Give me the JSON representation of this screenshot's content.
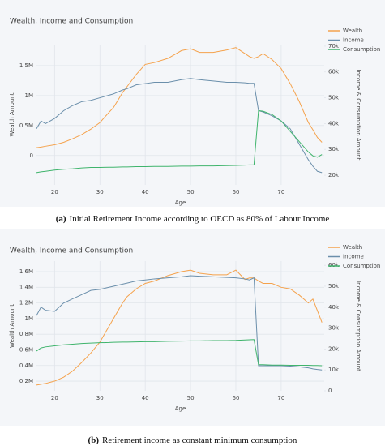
{
  "chart_data": [
    {
      "type": "line",
      "title": "Wealth, Income and Consumption",
      "caption_label": "(a)",
      "caption": "Initial Retirement Income according to OECD as 80% of Labour Income",
      "xlabel": "Age",
      "ylabel": "Wealth Amount",
      "y2label": "Income & Consumption Amount",
      "x": [
        16,
        17,
        18,
        20,
        22,
        24,
        26,
        28,
        30,
        32,
        33,
        35,
        36,
        38,
        40,
        42,
        45,
        48,
        50,
        52,
        55,
        58,
        60,
        62,
        63,
        64,
        65,
        66,
        68,
        70,
        72,
        74,
        76,
        77,
        78,
        79
      ],
      "xlim": [
        16,
        79.5
      ],
      "xticks": [
        20,
        30,
        40,
        50,
        60,
        70
      ],
      "ylim": [
        -490000,
        1850000
      ],
      "yticks": [
        0,
        {
          "value": 500000,
          "label": "0.5M"
        },
        {
          "value": 1000000,
          "label": "1M"
        },
        {
          "value": 1500000,
          "label": "1.5M"
        }
      ],
      "y2lim": [
        16250,
        70600
      ],
      "y2ticks": [
        {
          "value": 20000,
          "label": "20k"
        },
        {
          "value": 30000,
          "label": "30k"
        },
        {
          "value": 40000,
          "label": "40k"
        },
        {
          "value": 50000,
          "label": "50k"
        },
        {
          "value": 60000,
          "label": "60k"
        },
        {
          "value": 70000,
          "label": "70k"
        }
      ],
      "grid": true,
      "legend": "top-right",
      "series": [
        {
          "name": "Wealth",
          "color": "#f5a24c",
          "values": [
            130000,
            140000,
            155000,
            180000,
            220000,
            280000,
            350000,
            440000,
            550000,
            720000,
            800000,
            1050000,
            1150000,
            1350000,
            1520000,
            1550000,
            1620000,
            1750000,
            1780000,
            1720000,
            1720000,
            1760000,
            1800000,
            1700000,
            1650000,
            1620000,
            1650000,
            1700000,
            1600000,
            1450000,
            1200000,
            900000,
            550000,
            430000,
            300000,
            220000
          ]
        },
        {
          "name": "Income",
          "color": "#6b8fab",
          "axis": "y2",
          "values": [
            38000,
            41000,
            40000,
            42000,
            45000,
            47000,
            48500,
            49000,
            50000,
            51000,
            51500,
            53000,
            53500,
            55000,
            55500,
            56000,
            56000,
            57000,
            57500,
            57000,
            56500,
            56000,
            56000,
            55800,
            55600,
            55600,
            45000,
            44500,
            43000,
            41000,
            38000,
            32000,
            26000,
            23500,
            21500,
            21000
          ]
        },
        {
          "name": "Consumption",
          "color": "#3fb46c",
          "axis": "y2",
          "values": [
            21000,
            21300,
            21500,
            22000,
            22300,
            22500,
            22800,
            23000,
            23000,
            23100,
            23100,
            23200,
            23200,
            23300,
            23300,
            23400,
            23400,
            23500,
            23500,
            23600,
            23600,
            23700,
            23800,
            23900,
            24000,
            24000,
            45000,
            44800,
            43500,
            41000,
            37000,
            33000,
            29000,
            27500,
            27000,
            28000
          ]
        }
      ]
    },
    {
      "type": "line",
      "title": "Wealth, Income and Consumption",
      "caption_label": "(b)",
      "caption": "Retirement income as constant minimum consumption",
      "xlabel": "Age",
      "ylabel": "Wealth Amount",
      "y2label": "Income & Consumption Amount",
      "x": [
        16,
        17,
        18,
        20,
        22,
        24,
        26,
        28,
        30,
        32,
        33,
        35,
        36,
        38,
        40,
        42,
        45,
        48,
        50,
        52,
        55,
        58,
        60,
        62,
        63,
        64,
        65,
        66,
        68,
        70,
        72,
        74,
        76,
        77,
        78,
        79
      ],
      "xlim": [
        16,
        79.5
      ],
      "xticks": [
        20,
        30,
        40,
        50,
        60,
        70
      ],
      "ylim": [
        76000,
        1735000
      ],
      "yticks": [
        {
          "value": 200000,
          "label": "0.2M"
        },
        {
          "value": 400000,
          "label": "0.4M"
        },
        {
          "value": 600000,
          "label": "0.6M"
        },
        {
          "value": 800000,
          "label": "0.8M"
        },
        {
          "value": 1000000,
          "label": "1M"
        },
        {
          "value": 1200000,
          "label": "1.2M"
        },
        {
          "value": 1400000,
          "label": "1.4M"
        },
        {
          "value": 1600000,
          "label": "1.6M"
        }
      ],
      "y2lim": [
        0,
        62000
      ],
      "y2ticks": [
        0,
        {
          "value": 10000,
          "label": "10k"
        },
        {
          "value": 20000,
          "label": "20k"
        },
        {
          "value": 30000,
          "label": "30k"
        },
        {
          "value": 40000,
          "label": "40k"
        },
        {
          "value": 50000,
          "label": "50k"
        },
        {
          "value": 60000,
          "label": "60k"
        }
      ],
      "grid": true,
      "legend": "top-right",
      "series": [
        {
          "name": "Wealth",
          "color": "#f5a24c",
          "values": [
            150000,
            160000,
            170000,
            200000,
            250000,
            330000,
            440000,
            560000,
            700000,
            900000,
            1000000,
            1200000,
            1280000,
            1380000,
            1450000,
            1480000,
            1550000,
            1600000,
            1620000,
            1580000,
            1560000,
            1560000,
            1620000,
            1500000,
            1520000,
            1520000,
            1480000,
            1450000,
            1450000,
            1400000,
            1380000,
            1300000,
            1200000,
            1250000,
            1100000,
            950000
          ]
        },
        {
          "name": "Income",
          "color": "#6b8fab",
          "axis": "y2",
          "values": [
            36000,
            40000,
            38500,
            38000,
            42000,
            44000,
            46000,
            48000,
            48500,
            49500,
            50000,
            51000,
            51500,
            52500,
            53000,
            53500,
            54000,
            54500,
            55000,
            54800,
            54500,
            54200,
            54000,
            53500,
            53000,
            54000,
            12000,
            12000,
            12000,
            12000,
            11800,
            11500,
            11000,
            10500,
            10200,
            10000
          ]
        },
        {
          "name": "Consumption",
          "color": "#3fb46c",
          "axis": "y2",
          "values": [
            19000,
            20500,
            21000,
            21500,
            22000,
            22300,
            22600,
            22800,
            23000,
            23100,
            23200,
            23300,
            23300,
            23400,
            23500,
            23500,
            23700,
            23800,
            23900,
            23900,
            24000,
            24000,
            24100,
            24300,
            24400,
            24500,
            12500,
            12500,
            12300,
            12300,
            12200,
            12200,
            12200,
            12100,
            12100,
            12000
          ]
        }
      ]
    }
  ]
}
